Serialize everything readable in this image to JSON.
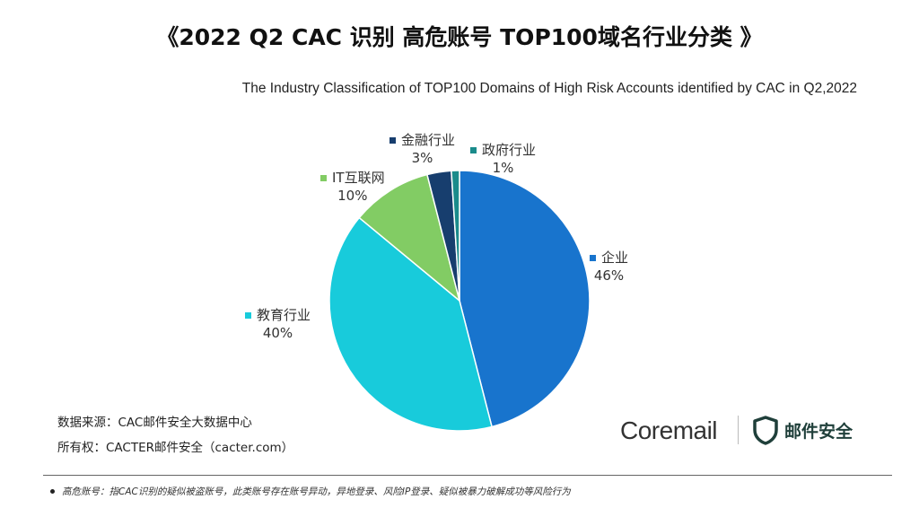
{
  "header": {
    "title": "《2022 Q2 CAC 识别 高危账号 TOP100域名行业分类 》",
    "subtitle": "The Industry Classification of TOP100 Domains of High Risk Accounts  identified by CAC in Q2,2022"
  },
  "chart_data": {
    "type": "pie",
    "categories": [
      "企业",
      "教育行业",
      "IT互联网",
      "金融行业",
      "政府行业"
    ],
    "values": [
      46,
      40,
      10,
      3,
      1
    ],
    "value_labels": [
      "46%",
      "40%",
      "10%",
      "3%",
      "1%"
    ],
    "colors": [
      "#1874cd",
      "#18cbdb",
      "#82cc64",
      "#173e6e",
      "#1a8b8b"
    ],
    "start": "12 o'clock",
    "direction": "clockwise",
    "legend": "none"
  },
  "labels": [
    {
      "name": "企业",
      "pct": "46%"
    },
    {
      "name": "教育行业",
      "pct": "40%"
    },
    {
      "name": "IT互联网",
      "pct": "10%"
    },
    {
      "name": "金融行业",
      "pct": "3%"
    },
    {
      "name": "政府行业",
      "pct": "1%"
    }
  ],
  "source": {
    "data_source": "数据来源：CAC邮件安全大数据中心",
    "copyright": "所有权：CACTER邮件安全（cacter.com）"
  },
  "brand": {
    "coremail": "Coremail",
    "cn_name": "邮件安全",
    "shield_color": "#1f3f3a"
  },
  "footnote": {
    "text": "高危账号：指CAC识别的疑似被盗账号，此类账号存在账号异动，异地登录、风险IP登录、疑似被暴力破解成功等风险行为"
  }
}
